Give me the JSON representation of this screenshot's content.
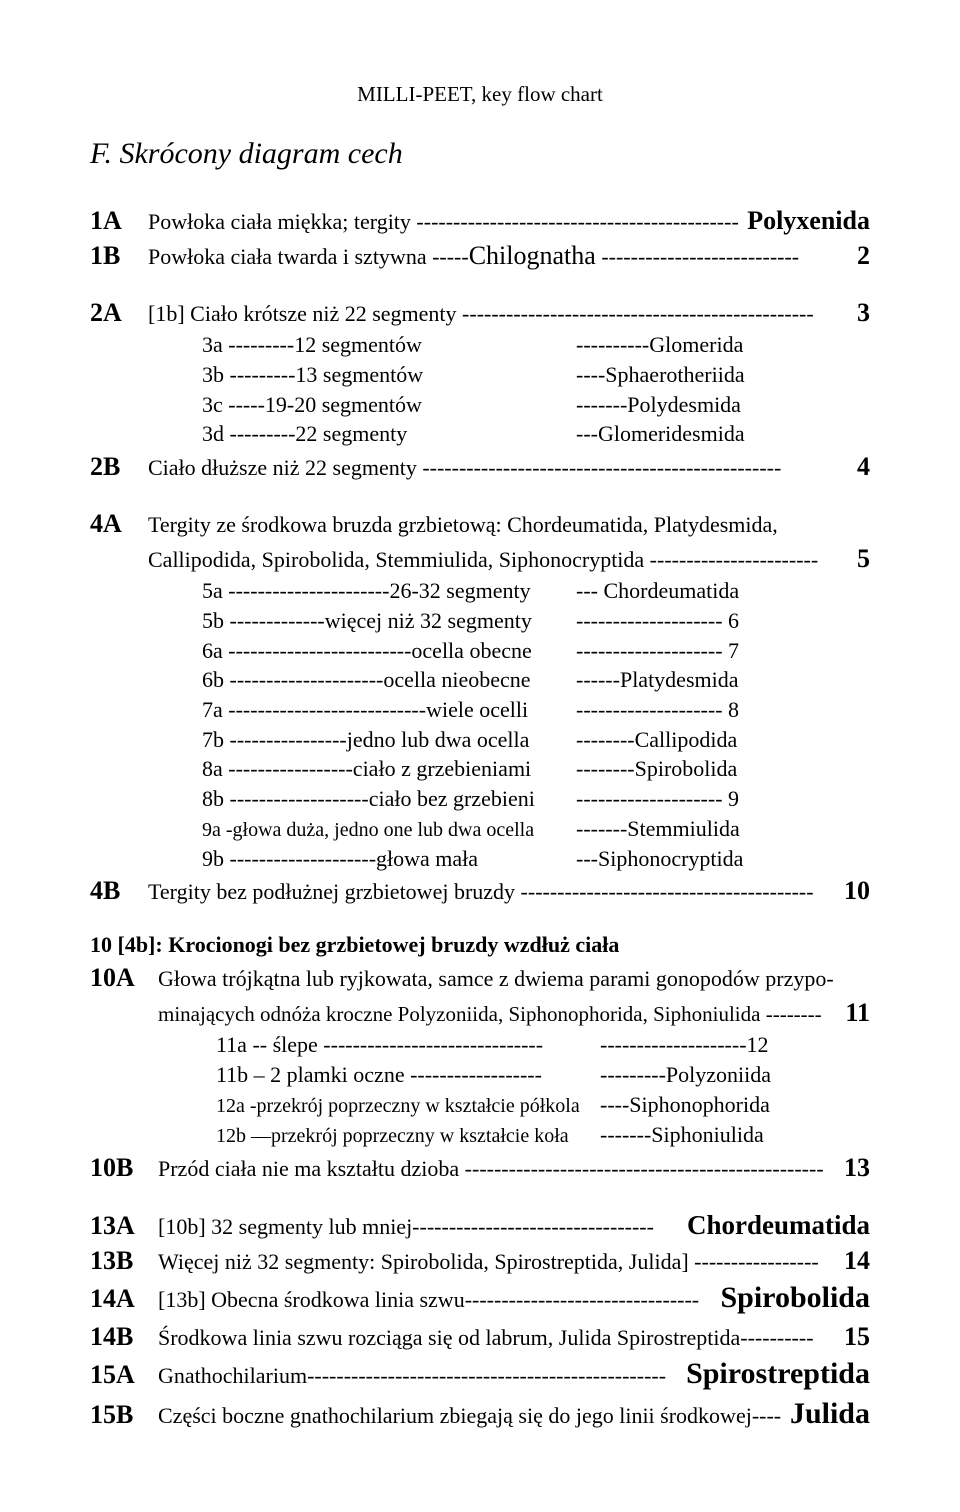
{
  "header": "MILLI-PEET, key flow chart",
  "title": "F. Skrócony diagram cech",
  "rows": {
    "r1A": {
      "key": "1A",
      "text": "Powłoka ciała miękka; tergity --------------------------------------------",
      "res": "Polyxenida"
    },
    "r1B": {
      "key": "1B",
      "text": "Powłoka ciała twarda i sztywna -----",
      "chil": "Chilognatha",
      "tail": " ---------------------------",
      "res": "2"
    },
    "r2A": {
      "key": "2A",
      "text": "[1b] Ciało krótsze niż 22 segmenty ------------------------------------------------",
      "res": "3"
    },
    "s3a": {
      "l": "3a ---------12 segmentów",
      "r": "----------Glomerida"
    },
    "s3b": {
      "l": "3b ---------13 segmentów",
      "r": "----Sphaerotheriida"
    },
    "s3c": {
      "l": "3c -----19-20 segmentów",
      "r": "-------Polydesmida"
    },
    "s3d": {
      "l": "3d ---------22 segmenty",
      "r": "---Glomeridesmida"
    },
    "r2B": {
      "key": "2B",
      "text": "Ciało dłuższe niż 22 segmenty -------------------------------------------------",
      "res": "4"
    },
    "r4A": {
      "key": "4A",
      "text1": "Tergity ze środkowa bruzda grzbietową: Chordeumatida, Platydesmida,",
      "text2": "Callipodida, Spirobolida, Stemmiulida, Siphonocryptida -----------------------",
      "res": "5"
    },
    "s5a": {
      "l": "5a ----------------------26-32 segmenty",
      "r": "--- Chordeumatida"
    },
    "s5b": {
      "l": "5b -------------więcej niż 32 segmenty",
      "r": "-------------------- 6"
    },
    "s6a": {
      "l": "6a -------------------------ocella obecne",
      "r": "-------------------- 7"
    },
    "s6b": {
      "l": "6b ---------------------ocella nieobecne",
      "r": "------Platydesmida"
    },
    "s7a": {
      "l": "7a ---------------------------wiele ocelli",
      "r": "-------------------- 8"
    },
    "s7b": {
      "l": "7b ----------------jedno lub dwa ocella",
      "r": "--------Callipodida"
    },
    "s8a": {
      "l": "8a -----------------ciało z grzebieniami",
      "r": "--------Spirobolida"
    },
    "s8b": {
      "l": "8b -------------------ciało bez grzebieni",
      "r": "-------------------- 9"
    },
    "s9a": {
      "l": "9a -głowa duża, jedno one lub dwa ocella",
      "r": "-------Stemmiulida"
    },
    "s9b": {
      "l": "9b --------------------głowa mała",
      "r": "---Siphonocryptida"
    },
    "r4B": {
      "key": "4B",
      "text": "Tergity bez podłużnej grzbietowej bruzdy ----------------------------------------",
      "res": "10"
    },
    "sec10": "10 [4b]: Krocionogi bez grzbietowej bruzdy wzdłuż ciała",
    "r10A": {
      "key": "10A",
      "text1": "Głowa trójkątna lub ryjkowata, samce z dwiema parami gonopodów przypo-",
      "text2": "minających odnóża kroczne Polyzoniida, Siphonophorida, Siphoniulida --------",
      "res": "11"
    },
    "s11a": {
      "l": "11a -- ślepe ------------------------------",
      "r": "--------------------12"
    },
    "s11b": {
      "l": "11b – 2 plamki oczne ------------------",
      "r": "---------Polyzoniida"
    },
    "s12a": {
      "l": "12a -przekrój poprzeczny w kształcie półkola",
      "r": "----Siphonophorida"
    },
    "s12b": {
      "l": "12b —przekrój poprzeczny w kształcie koła",
      "r": "-------Siphoniulida"
    },
    "r10B": {
      "key": "10B",
      "text": "Przód ciała nie ma kształtu dzioba -------------------------------------------------",
      "res": "13"
    },
    "r13A": {
      "key": "13A",
      "text": "[10b] 32 segmenty lub mniej---------------------------------",
      "res": "Chordeumatida"
    },
    "r13B": {
      "key": "13B",
      "text": "Więcej niż 32 segmenty: Spirobolida, Spirostreptida, Julida] -----------------",
      "res": "14"
    },
    "r14A": {
      "key": "14A",
      "text": "[13b] Obecna środkowa linia szwu--------------------------------",
      "res": "Spirobolida"
    },
    "r14B": {
      "key": "14B",
      "text": "Środkowa linia szwu rozciąga się od labrum, Julida Spirostreptida----------",
      "res": "15"
    },
    "r15A": {
      "key": "15A",
      "text": "Gnathochilarium-------------------------------------------------",
      "res": "Spirostreptida"
    },
    "r15B": {
      "key": "15B",
      "text": "Części boczne gnathochilarium zbiegają się do jego linii środkowej----",
      "res": "Julida"
    }
  }
}
